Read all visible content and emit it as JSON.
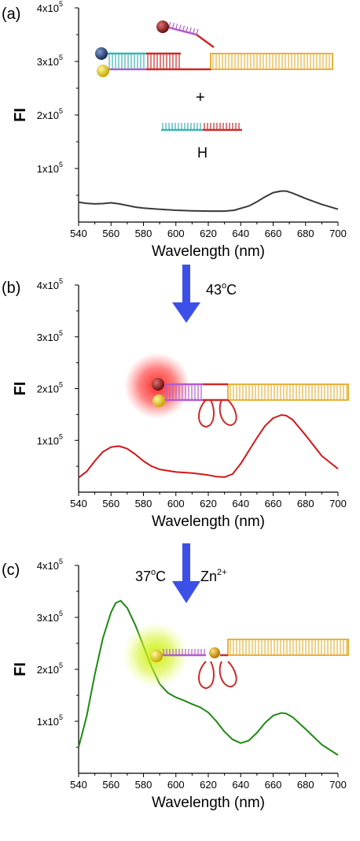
{
  "chart_data": [
    {
      "panel_label": "(a)",
      "type": "line",
      "xlabel": "Wavelength (nm)",
      "ylabel": "FI",
      "xlim": [
        540,
        700
      ],
      "ylim": [
        0,
        400000
      ],
      "xticks": [
        "540",
        "560",
        "580",
        "600",
        "620",
        "640",
        "660",
        "680",
        "700"
      ],
      "yticks": [
        {
          "mant": "1x10",
          "exp": "5",
          "value": 100000
        },
        {
          "mant": "2x10",
          "exp": "5",
          "value": 200000
        },
        {
          "mant": "3x10",
          "exp": "5",
          "value": 300000
        },
        {
          "mant": "4x10",
          "exp": "5",
          "value": 400000
        }
      ],
      "series": [
        {
          "color": "#3a3a3a",
          "x": [
            540,
            545,
            550,
            555,
            560,
            565,
            570,
            575,
            580,
            590,
            600,
            610,
            620,
            630,
            636,
            645,
            650,
            655,
            660,
            665,
            668,
            672,
            680,
            690,
            700
          ],
          "y": [
            37000,
            35000,
            34000,
            34500,
            36000,
            34000,
            31000,
            28000,
            26000,
            24000,
            22000,
            21000,
            20500,
            20500,
            22000,
            30000,
            38000,
            47000,
            55000,
            58000,
            58000,
            54000,
            44000,
            33000,
            24000
          ]
        }
      ],
      "annotations": {
        "plus": "+",
        "h_label": "H"
      }
    },
    {
      "panel_label": "(b)",
      "type": "line",
      "xlabel": "Wavelength (nm)",
      "ylabel": "FI",
      "xlim": [
        540,
        700
      ],
      "ylim": [
        0,
        400000
      ],
      "xticks": [
        "540",
        "560",
        "580",
        "600",
        "620",
        "640",
        "660",
        "680",
        "700"
      ],
      "yticks": [
        {
          "mant": "1x10",
          "exp": "5",
          "value": 100000
        },
        {
          "mant": "2x10",
          "exp": "5",
          "value": 200000
        },
        {
          "mant": "3x10",
          "exp": "5",
          "value": 300000
        },
        {
          "mant": "4x10",
          "exp": "5",
          "value": 400000
        }
      ],
      "series": [
        {
          "color": "#d01818",
          "x": [
            540,
            545,
            550,
            555,
            560,
            565,
            570,
            575,
            580,
            585,
            590,
            600,
            610,
            620,
            625,
            630,
            635,
            640,
            645,
            650,
            655,
            660,
            665,
            668,
            672,
            680,
            690,
            700
          ],
          "y": [
            28000,
            40000,
            60000,
            78000,
            87000,
            89000,
            84000,
            73000,
            60000,
            50000,
            44000,
            39000,
            37000,
            33000,
            30000,
            29000,
            35000,
            55000,
            80000,
            105000,
            128000,
            143000,
            149000,
            148000,
            140000,
            110000,
            70000,
            45000
          ]
        }
      ]
    },
    {
      "panel_label": "(c)",
      "type": "line",
      "xlabel": "Wavelength (nm)",
      "ylabel": "FI",
      "xlim": [
        540,
        700
      ],
      "ylim": [
        0,
        400000
      ],
      "xticks": [
        "540",
        "560",
        "580",
        "600",
        "620",
        "640",
        "660",
        "680",
        "700"
      ],
      "yticks": [
        {
          "mant": "1x10",
          "exp": "5",
          "value": 100000
        },
        {
          "mant": "2x10",
          "exp": "5",
          "value": 200000
        },
        {
          "mant": "3x10",
          "exp": "5",
          "value": 300000
        },
        {
          "mant": "4x10",
          "exp": "5",
          "value": 400000
        }
      ],
      "series": [
        {
          "color": "#1f8a12",
          "x": [
            540,
            545,
            550,
            555,
            560,
            563,
            566,
            570,
            575,
            580,
            585,
            590,
            595,
            600,
            605,
            610,
            615,
            620,
            625,
            630,
            635,
            640,
            645,
            650,
            655,
            660,
            665,
            668,
            672,
            680,
            690,
            700
          ],
          "y": [
            50000,
            110000,
            190000,
            260000,
            310000,
            328000,
            332000,
            318000,
            285000,
            245000,
            205000,
            172000,
            155000,
            146000,
            140000,
            133000,
            127000,
            117000,
            100000,
            80000,
            65000,
            58000,
            63000,
            78000,
            97000,
            111000,
            116000,
            115000,
            108000,
            85000,
            55000,
            35000
          ]
        }
      ]
    }
  ],
  "transitions": [
    {
      "condition_left": "43",
      "condition_deg": "o",
      "condition_unit": "C"
    },
    {
      "condition_left": "37",
      "condition_deg": "o",
      "condition_unit": "C",
      "ion": "Zn",
      "ion_charge": "2+"
    }
  ],
  "colors": {
    "arrow": "#3c50e8",
    "axis": "#000000",
    "duplex_orange": "#e7b23a",
    "strand_teal": "#3ab3b3",
    "strand_red": "#cc2a2a",
    "strand_purple": "#b35ccc",
    "ball_navy": "#1f3a6e",
    "ball_yellow": "#f0d010",
    "ball_darkred": "#8a1a1a",
    "ball_orange": "#e0a000",
    "glow_red": "#ff2020",
    "glow_yellow": "#d4f000"
  }
}
